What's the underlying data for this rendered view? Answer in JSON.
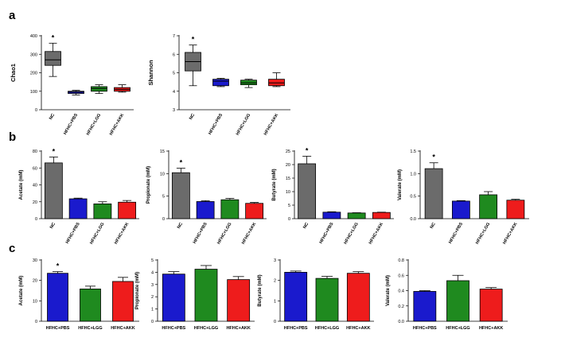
{
  "figure": {
    "letters": [
      "a",
      "b",
      "c"
    ]
  },
  "colors": {
    "NC": "#6b6b6b",
    "HFHC+PBS": "#1a1acd",
    "HFHC+LGG": "#1f8a1f",
    "HFHC+AKK": "#ee1c1c"
  },
  "chart_data": [
    {
      "id": "chao1",
      "panel": "a",
      "type": "box",
      "ylabel": "Chao1",
      "ylim": [
        0,
        400
      ],
      "yticks": [
        0,
        100,
        200,
        300,
        400
      ],
      "categories": [
        "NC",
        "HFHC+PBS",
        "HFHC+LGG",
        "HFHC+AKK"
      ],
      "boxes": [
        {
          "min": 180,
          "q1": 240,
          "median": 270,
          "q3": 315,
          "max": 360
        },
        {
          "min": 80,
          "q1": 88,
          "median": 95,
          "q3": 100,
          "max": 105
        },
        {
          "min": 88,
          "q1": 100,
          "median": 115,
          "q3": 125,
          "max": 135
        },
        {
          "min": 95,
          "q1": 100,
          "median": 110,
          "q3": 120,
          "max": 135
        }
      ],
      "annotations": [
        {
          "category": "NC",
          "text": "*"
        }
      ]
    },
    {
      "id": "shannon",
      "panel": "a",
      "type": "box",
      "ylabel": "Shannon",
      "ylim": [
        3,
        7
      ],
      "yticks": [
        3,
        4,
        5,
        6,
        7
      ],
      "categories": [
        "NC",
        "HFHC+PBS",
        "HFHC+LGG",
        "HFHC+AKK"
      ],
      "boxes": [
        {
          "min": 4.3,
          "q1": 5.1,
          "median": 5.6,
          "q3": 6.1,
          "max": 6.5
        },
        {
          "min": 4.25,
          "q1": 4.3,
          "median": 4.55,
          "q3": 4.65,
          "max": 4.7
        },
        {
          "min": 4.2,
          "q1": 4.35,
          "median": 4.45,
          "q3": 4.6,
          "max": 4.65
        },
        {
          "min": 4.25,
          "q1": 4.3,
          "median": 4.45,
          "q3": 4.65,
          "max": 5.0
        }
      ],
      "annotations": [
        {
          "category": "NC",
          "text": "*"
        }
      ]
    },
    {
      "id": "b-acetate",
      "panel": "b",
      "type": "bar",
      "ylabel": "Acetate (mM)",
      "ylim": [
        0,
        80
      ],
      "yticks": [
        0,
        20,
        40,
        60,
        80
      ],
      "categories": [
        "NC",
        "HFHC+PBS",
        "HFHC+LGG",
        "HFHC+AKK"
      ],
      "values": [
        66,
        23.5,
        17.5,
        19.5
      ],
      "errors": [
        7,
        0.8,
        2.5,
        2
      ],
      "annotations": [
        {
          "category": "NC",
          "text": "*"
        }
      ]
    },
    {
      "id": "b-propionate",
      "panel": "b",
      "type": "bar",
      "ylabel": "Propionate (mM)",
      "ylim": [
        0,
        15
      ],
      "yticks": [
        0,
        5,
        10,
        15
      ],
      "categories": [
        "NC",
        "HFHC+PBS",
        "HFHC+LGG",
        "HFHC+AKK"
      ],
      "values": [
        10.2,
        3.8,
        4.2,
        3.4
      ],
      "errors": [
        1.0,
        0.2,
        0.3,
        0.2
      ],
      "annotations": [
        {
          "category": "NC",
          "text": "*"
        }
      ]
    },
    {
      "id": "b-butyrate",
      "panel": "b",
      "type": "bar",
      "ylabel": "Butyrate (mM)",
      "ylim": [
        0,
        25
      ],
      "yticks": [
        0,
        5,
        10,
        15,
        20,
        25
      ],
      "categories": [
        "NC",
        "HFHC+PBS",
        "HFHC+LGG",
        "HFHC+AKK"
      ],
      "values": [
        20.3,
        2.4,
        2.1,
        2.3
      ],
      "errors": [
        2.8,
        0.15,
        0.1,
        0.1
      ],
      "annotations": [
        {
          "category": "NC",
          "text": "*"
        }
      ]
    },
    {
      "id": "b-valerate",
      "panel": "b",
      "type": "bar",
      "ylabel": "Valerate (mM)",
      "ylim": [
        0,
        1.5
      ],
      "yticks": [
        0.0,
        0.5,
        1.0,
        1.5
      ],
      "categories": [
        "NC",
        "HFHC+PBS",
        "HFHC+LGG",
        "HFHC+AKK"
      ],
      "values": [
        1.11,
        0.39,
        0.53,
        0.41
      ],
      "errors": [
        0.13,
        0.01,
        0.07,
        0.02
      ],
      "annotations": [
        {
          "category": "NC",
          "text": "*"
        }
      ]
    },
    {
      "id": "c-acetate",
      "panel": "c",
      "type": "bar",
      "ylabel": "Acetate (mM)",
      "ylim": [
        0,
        30
      ],
      "yticks": [
        0,
        10,
        20,
        30
      ],
      "categories": [
        "HFHC+PBS",
        "HFHC+LGG",
        "HFHC+AKK"
      ],
      "values": [
        23.5,
        15.8,
        19.5
      ],
      "errors": [
        0.8,
        1.4,
        2.0
      ],
      "annotations": [
        {
          "category": "HFHC+PBS",
          "text": "*"
        }
      ]
    },
    {
      "id": "c-propionate",
      "panel": "c",
      "type": "bar",
      "ylabel": "Propionate (mM)",
      "ylim": [
        0,
        5
      ],
      "yticks": [
        0,
        1,
        2,
        3,
        4,
        5
      ],
      "categories": [
        "HFHC+PBS",
        "HFHC+LGG",
        "HFHC+AKK"
      ],
      "values": [
        3.85,
        4.25,
        3.4
      ],
      "errors": [
        0.2,
        0.3,
        0.25
      ],
      "annotations": []
    },
    {
      "id": "c-butyrate",
      "panel": "c",
      "type": "bar",
      "ylabel": "Butyrate (mM)",
      "ylim": [
        0,
        3
      ],
      "yticks": [
        0,
        1,
        2,
        3
      ],
      "categories": [
        "HFHC+PBS",
        "HFHC+LGG",
        "HFHC+AKK"
      ],
      "values": [
        2.4,
        2.1,
        2.35
      ],
      "errors": [
        0.06,
        0.1,
        0.08
      ],
      "annotations": []
    },
    {
      "id": "c-valerate",
      "panel": "c",
      "type": "bar",
      "ylabel": "Valerate (mM)",
      "ylim": [
        0,
        0.8
      ],
      "yticks": [
        0.0,
        0.2,
        0.4,
        0.6,
        0.8
      ],
      "categories": [
        "HFHC+PBS",
        "HFHC+LGG",
        "HFHC+AKK"
      ],
      "values": [
        0.39,
        0.53,
        0.42
      ],
      "errors": [
        0.01,
        0.07,
        0.02
      ],
      "annotations": []
    }
  ]
}
